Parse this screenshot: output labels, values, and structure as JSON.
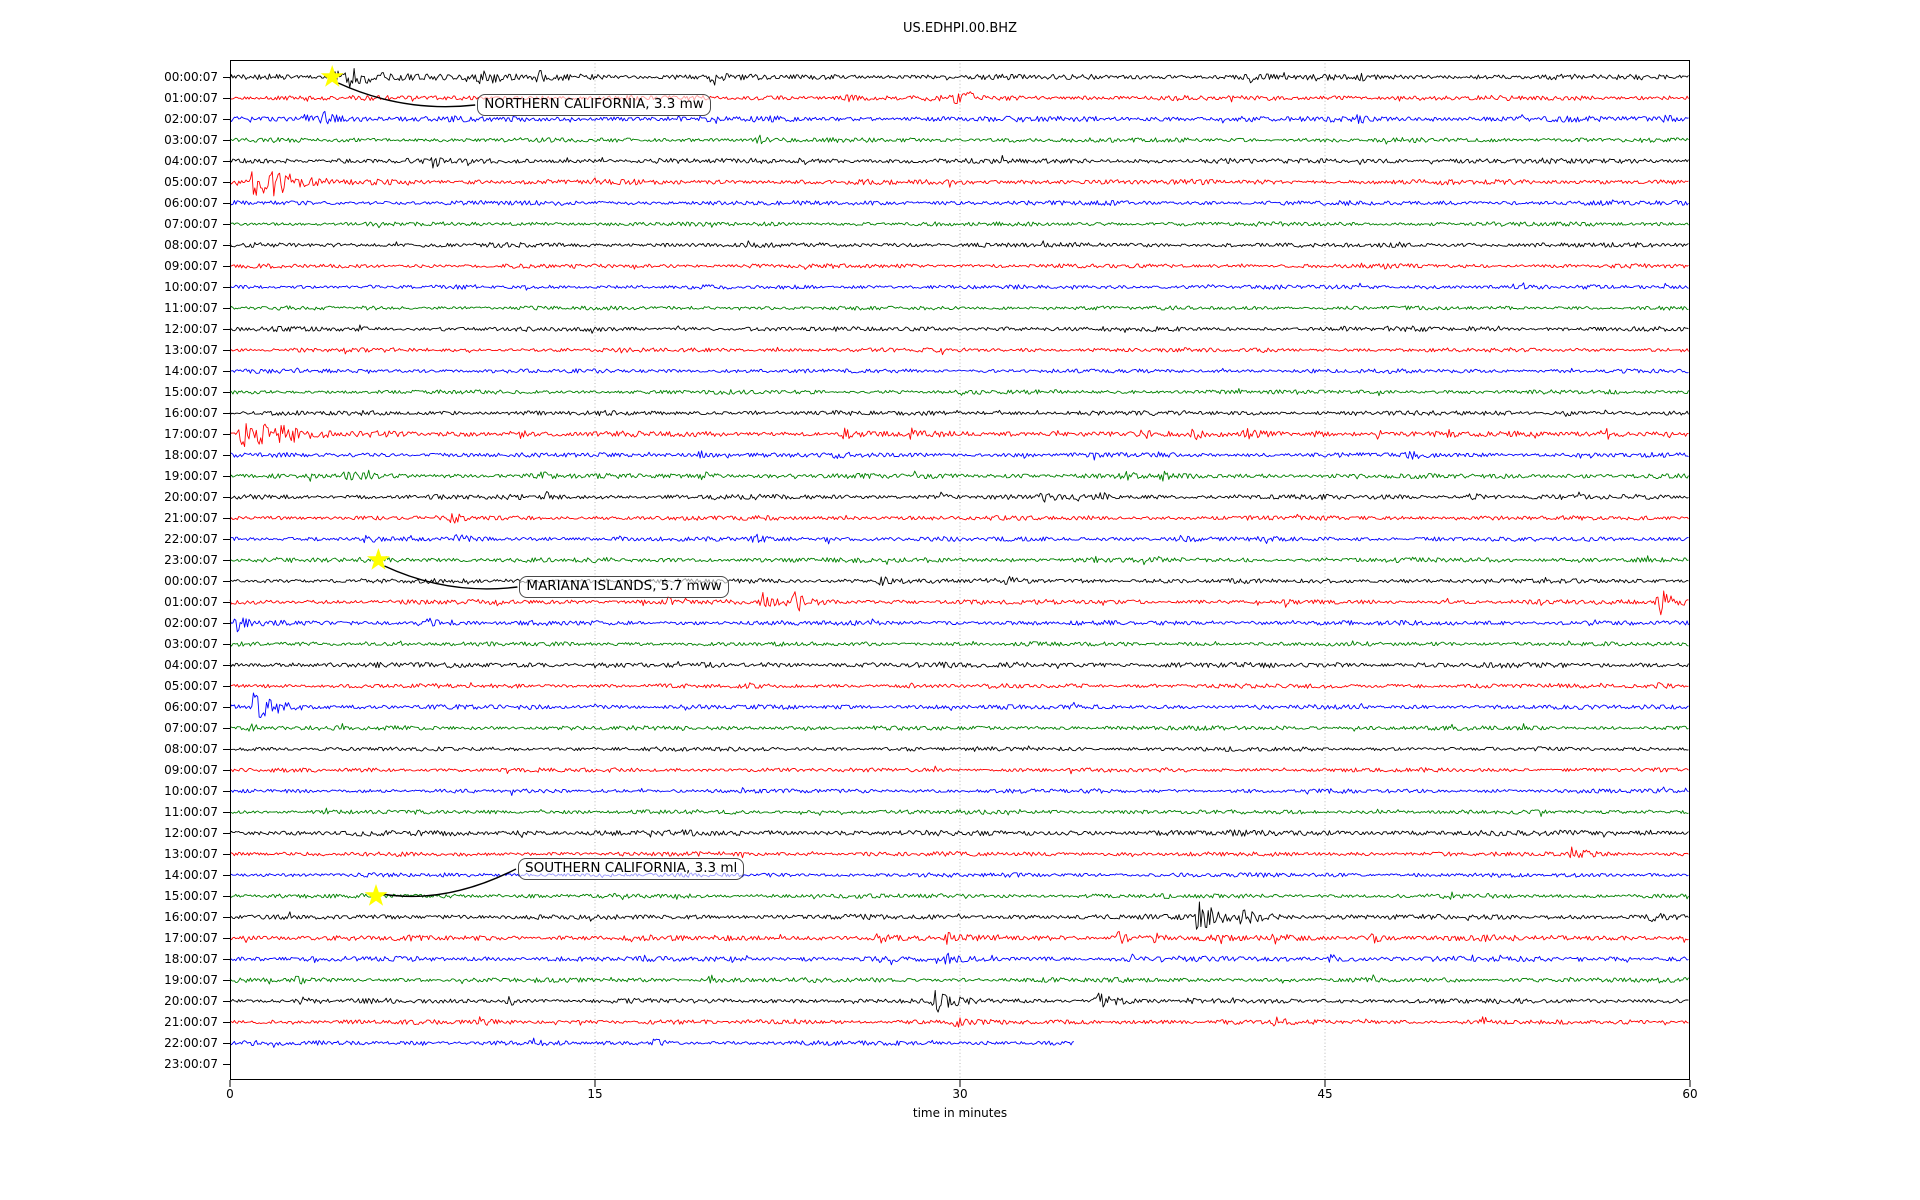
{
  "figure": {
    "title": "US.EDHPI.00.BHZ",
    "xlabel": "time in minutes",
    "background": "#ffffff"
  },
  "chart_data": {
    "type": "line",
    "subtype": "helicorder-dayplot",
    "station_id": "US.EDHPI.00.BHZ",
    "xlabel": "time in minutes",
    "x_range_minutes": [
      0,
      60
    ],
    "x_ticks": [
      0,
      15,
      30,
      45,
      60
    ],
    "grid_minutes": [
      15,
      30,
      45
    ],
    "grid_color": "#b0b0b0",
    "trace_colors": [
      "#000000",
      "#ff0000",
      "#0000ff",
      "#008000"
    ],
    "marker_color": "#ffff00",
    "events": [
      {
        "label": "NORTHERN CALIFORNIA, 3.3 mw",
        "row": 0,
        "minute": 4.2
      },
      {
        "label": "MARIANA ISLANDS, 5.7 mww",
        "row": 23,
        "minute": 6.1
      },
      {
        "label": "SOUTHERN CALIFORNIA, 3.3 ml",
        "row": 39,
        "minute": 6.0
      }
    ],
    "rows": [
      {
        "label": "00:00:07",
        "color": "#000000",
        "end": 60,
        "amp": 2.3,
        "bursts": [
          [
            4.3,
            6,
            0.6
          ],
          [
            4.9,
            9,
            1.2
          ],
          [
            10.3,
            7,
            0.25
          ],
          [
            10.9,
            5,
            0.2
          ],
          [
            12.7,
            6,
            0.8
          ],
          [
            19.9,
            9,
            0.3
          ],
          [
            42,
            4,
            0.5
          ],
          [
            44.5,
            4,
            0.3
          ],
          [
            46.5,
            3,
            0.3
          ]
        ]
      },
      {
        "label": "01:00:07",
        "color": "#ff0000",
        "end": 60,
        "amp": 2.2,
        "bursts": [
          [
            25.5,
            3,
            0.2
          ],
          [
            29.9,
            6,
            0.3
          ],
          [
            30.4,
            5,
            0.25
          ]
        ]
      },
      {
        "label": "02:00:07",
        "color": "#0000ff",
        "end": 60,
        "amp": 2.4,
        "bursts": [
          [
            3.1,
            6,
            0.4
          ],
          [
            3.9,
            7,
            0.5
          ],
          [
            46.4,
            3,
            0.3
          ],
          [
            59,
            4,
            0.3
          ]
        ]
      },
      {
        "label": "03:00:07",
        "color": "#008000",
        "end": 60,
        "amp": 2.0,
        "bursts": [
          [
            21.8,
            3,
            0.2
          ]
        ]
      },
      {
        "label": "04:00:07",
        "color": "#000000",
        "end": 60,
        "amp": 2.2,
        "bursts": [
          [
            8.4,
            7,
            0.3
          ]
        ]
      },
      {
        "label": "05:00:07",
        "color": "#ff0000",
        "end": 60,
        "amp": 2.2,
        "bursts": [
          [
            1.0,
            16,
            0.8
          ],
          [
            1.8,
            7,
            1.0
          ]
        ]
      },
      {
        "label": "06:00:07",
        "color": "#0000ff",
        "end": 60,
        "amp": 2.0,
        "bursts": []
      },
      {
        "label": "07:00:07",
        "color": "#008000",
        "end": 60,
        "amp": 1.8,
        "bursts": []
      },
      {
        "label": "08:00:07",
        "color": "#000000",
        "end": 60,
        "amp": 2.0,
        "bursts": []
      },
      {
        "label": "09:00:07",
        "color": "#ff0000",
        "end": 60,
        "amp": 1.8,
        "bursts": []
      },
      {
        "label": "10:00:07",
        "color": "#0000ff",
        "end": 60,
        "amp": 1.8,
        "bursts": []
      },
      {
        "label": "11:00:07",
        "color": "#008000",
        "end": 60,
        "amp": 1.7,
        "bursts": []
      },
      {
        "label": "12:00:07",
        "color": "#000000",
        "end": 60,
        "amp": 2.0,
        "bursts": []
      },
      {
        "label": "13:00:07",
        "color": "#ff0000",
        "end": 60,
        "amp": 1.8,
        "bursts": []
      },
      {
        "label": "14:00:07",
        "color": "#0000ff",
        "end": 60,
        "amp": 1.8,
        "bursts": []
      },
      {
        "label": "15:00:07",
        "color": "#008000",
        "end": 60,
        "amp": 1.8,
        "bursts": []
      },
      {
        "label": "16:00:07",
        "color": "#000000",
        "end": 60,
        "amp": 2.0,
        "bursts": [
          [
            55,
            3,
            0.3
          ]
        ]
      },
      {
        "label": "17:00:07",
        "color": "#ff0000",
        "end": 60,
        "amp": 2.3,
        "bursts": [
          [
            0.5,
            15,
            0.5
          ],
          [
            1.2,
            8,
            1.5
          ],
          [
            2.2,
            6,
            0.5
          ],
          [
            12,
            4,
            0.2
          ],
          [
            25.3,
            5,
            0.25
          ],
          [
            28,
            4,
            0.2
          ],
          [
            34,
            4,
            0.25
          ],
          [
            37.5,
            5,
            0.3
          ],
          [
            39.5,
            5,
            0.4
          ],
          [
            41.8,
            6,
            0.3
          ],
          [
            44.6,
            4,
            0.25
          ],
          [
            47.2,
            4,
            0.3
          ],
          [
            50,
            4,
            0.3
          ],
          [
            56.5,
            7,
            0.4
          ]
        ]
      },
      {
        "label": "18:00:07",
        "color": "#0000ff",
        "end": 60,
        "amp": 2.0,
        "bursts": [
          [
            19.4,
            5,
            0.25
          ],
          [
            25,
            4,
            0.2
          ],
          [
            48.5,
            3,
            0.3
          ]
        ]
      },
      {
        "label": "19:00:07",
        "color": "#008000",
        "end": 60,
        "amp": 2.1,
        "bursts": [
          [
            4.8,
            4,
            0.5
          ],
          [
            12.8,
            4,
            0.3
          ],
          [
            19.5,
            4,
            0.3
          ],
          [
            36.7,
            4,
            0.4
          ],
          [
            38.3,
            3,
            0.3
          ]
        ]
      },
      {
        "label": "20:00:07",
        "color": "#000000",
        "end": 60,
        "amp": 2.1,
        "bursts": [
          [
            13,
            4,
            0.25
          ],
          [
            29.2,
            4,
            0.3
          ],
          [
            33.5,
            4,
            0.3
          ],
          [
            35.8,
            4,
            0.25
          ],
          [
            51,
            3,
            0.3
          ]
        ]
      },
      {
        "label": "21:00:07",
        "color": "#ff0000",
        "end": 60,
        "amp": 1.9,
        "bursts": [
          [
            9.2,
            6,
            0.25
          ]
        ]
      },
      {
        "label": "22:00:07",
        "color": "#0000ff",
        "end": 60,
        "amp": 2.0,
        "bursts": [
          [
            5.6,
            4,
            0.2
          ],
          [
            9.4,
            5,
            0.25
          ],
          [
            21.6,
            4,
            0.3
          ],
          [
            24.6,
            4,
            0.25
          ],
          [
            39,
            4,
            0.3
          ]
        ]
      },
      {
        "label": "23:00:07",
        "color": "#008000",
        "end": 60,
        "amp": 2.1,
        "bursts": [
          [
            6.3,
            3,
            0.4
          ]
        ]
      },
      {
        "label": "00:00:07",
        "color": "#000000",
        "end": 60,
        "amp": 2.0,
        "bursts": [
          [
            26.8,
            5,
            0.5
          ],
          [
            32,
            4,
            0.3
          ]
        ]
      },
      {
        "label": "01:00:07",
        "color": "#ff0000",
        "end": 60,
        "amp": 2.0,
        "bursts": [
          [
            18,
            4,
            0.2
          ],
          [
            21.9,
            9,
            0.3
          ],
          [
            23.2,
            12,
            0.5
          ],
          [
            58.8,
            14,
            0.4
          ]
        ]
      },
      {
        "label": "02:00:07",
        "color": "#0000ff",
        "end": 60,
        "amp": 2.0,
        "bursts": [
          [
            0.35,
            9,
            0.4
          ],
          [
            8.2,
            6,
            0.25
          ]
        ]
      },
      {
        "label": "03:00:07",
        "color": "#008000",
        "end": 60,
        "amp": 1.8,
        "bursts": []
      },
      {
        "label": "04:00:07",
        "color": "#000000",
        "end": 60,
        "amp": 2.3,
        "bursts": []
      },
      {
        "label": "05:00:07",
        "color": "#ff0000",
        "end": 60,
        "amp": 1.9,
        "bursts": [
          [
            58.8,
            5,
            0.3
          ]
        ]
      },
      {
        "label": "06:00:07",
        "color": "#0000ff",
        "end": 60,
        "amp": 2.0,
        "bursts": [
          [
            1.0,
            14,
            0.9
          ]
        ]
      },
      {
        "label": "07:00:07",
        "color": "#008000",
        "end": 60,
        "amp": 1.9,
        "bursts": [
          [
            0.9,
            4,
            0.4
          ]
        ]
      },
      {
        "label": "08:00:07",
        "color": "#000000",
        "end": 60,
        "amp": 1.8,
        "bursts": []
      },
      {
        "label": "09:00:07",
        "color": "#ff0000",
        "end": 60,
        "amp": 1.8,
        "bursts": []
      },
      {
        "label": "10:00:07",
        "color": "#0000ff",
        "end": 60,
        "amp": 1.8,
        "bursts": []
      },
      {
        "label": "11:00:07",
        "color": "#008000",
        "end": 60,
        "amp": 1.8,
        "bursts": []
      },
      {
        "label": "12:00:07",
        "color": "#000000",
        "end": 60,
        "amp": 2.4,
        "bursts": []
      },
      {
        "label": "13:00:07",
        "color": "#ff0000",
        "end": 60,
        "amp": 1.9,
        "bursts": [
          [
            55.2,
            7,
            0.4
          ]
        ]
      },
      {
        "label": "14:00:07",
        "color": "#0000ff",
        "end": 60,
        "amp": 1.8,
        "bursts": []
      },
      {
        "label": "15:00:07",
        "color": "#008000",
        "end": 60,
        "amp": 1.9,
        "bursts": []
      },
      {
        "label": "16:00:07",
        "color": "#000000",
        "end": 60,
        "amp": 2.1,
        "bursts": [
          [
            39.8,
            14,
            0.8
          ],
          [
            41.6,
            5,
            0.8
          ],
          [
            58.5,
            4,
            0.3
          ]
        ]
      },
      {
        "label": "17:00:07",
        "color": "#ff0000",
        "end": 60,
        "amp": 2.4,
        "bursts": [
          [
            26.6,
            5,
            0.3
          ],
          [
            29.5,
            5,
            0.25
          ],
          [
            36.5,
            5,
            0.4
          ],
          [
            38,
            4,
            0.3
          ],
          [
            43,
            4,
            0.3
          ],
          [
            47,
            4,
            0.25
          ],
          [
            51.5,
            4,
            0.3
          ]
        ]
      },
      {
        "label": "18:00:07",
        "color": "#0000ff",
        "end": 60,
        "amp": 2.2,
        "bursts": [
          [
            29.5,
            4,
            0.25
          ],
          [
            45.3,
            4,
            0.3
          ]
        ]
      },
      {
        "label": "19:00:07",
        "color": "#008000",
        "end": 60,
        "amp": 2.0,
        "bursts": [
          [
            2.8,
            3,
            0.3
          ],
          [
            19.8,
            4,
            0.3
          ]
        ]
      },
      {
        "label": "20:00:07",
        "color": "#000000",
        "end": 60,
        "amp": 2.1,
        "bursts": [
          [
            3,
            4,
            0.3
          ],
          [
            11.5,
            4,
            0.3
          ],
          [
            29,
            8,
            0.7
          ],
          [
            35.7,
            7,
            0.6
          ]
        ]
      },
      {
        "label": "21:00:07",
        "color": "#ff0000",
        "end": 60,
        "amp": 2.0,
        "bursts": [
          [
            10.3,
            4,
            0.25
          ],
          [
            23,
            4,
            0.25
          ],
          [
            29.8,
            6,
            0.3
          ],
          [
            43,
            4,
            0.3
          ],
          [
            51.5,
            4,
            0.3
          ]
        ]
      },
      {
        "label": "22:00:07",
        "color": "#0000ff",
        "end": 34.7,
        "amp": 2.0,
        "bursts": [
          [
            12.5,
            3,
            0.3
          ],
          [
            17.5,
            3,
            0.3
          ]
        ]
      },
      {
        "label": "23:00:07",
        "color": "#008000",
        "end": 0,
        "amp": 0,
        "bursts": []
      }
    ]
  }
}
